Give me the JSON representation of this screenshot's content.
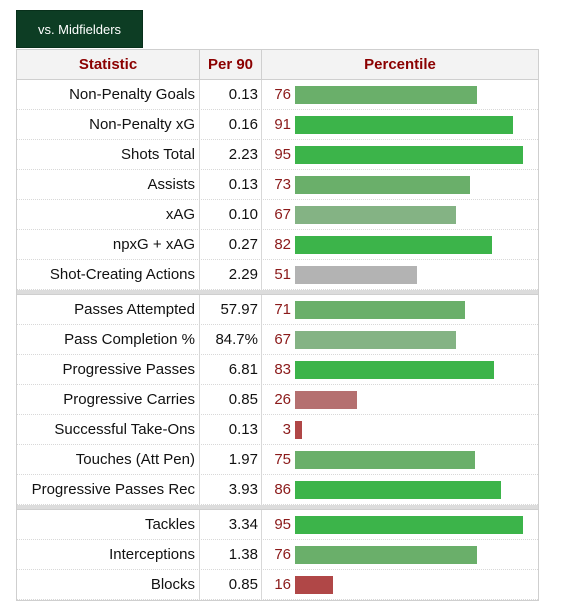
{
  "tab": {
    "label": "vs. Midfielders"
  },
  "header": {
    "statistic": "Statistic",
    "per90": "Per 90",
    "percentile": "Percentile"
  },
  "colors": {
    "high": "#3cb44a",
    "mid_high": "#6aaf6a",
    "mid": "#84b384",
    "neutral": "#b3b3b3",
    "low": "#b57070",
    "very_low": "#b04747"
  },
  "groups": [
    {
      "rows": [
        {
          "stat": "Non-Penalty Goals",
          "per90": "0.13",
          "pct": 76
        },
        {
          "stat": "Non-Penalty xG",
          "per90": "0.16",
          "pct": 91
        },
        {
          "stat": "Shots Total",
          "per90": "2.23",
          "pct": 95
        },
        {
          "stat": "Assists",
          "per90": "0.13",
          "pct": 73
        },
        {
          "stat": "xAG",
          "per90": "0.10",
          "pct": 67
        },
        {
          "stat": "npxG + xAG",
          "per90": "0.27",
          "pct": 82
        },
        {
          "stat": "Shot-Creating Actions",
          "per90": "2.29",
          "pct": 51
        }
      ]
    },
    {
      "rows": [
        {
          "stat": "Passes Attempted",
          "per90": "57.97",
          "pct": 71
        },
        {
          "stat": "Pass Completion %",
          "per90": "84.7%",
          "pct": 67
        },
        {
          "stat": "Progressive Passes",
          "per90": "6.81",
          "pct": 83
        },
        {
          "stat": "Progressive Carries",
          "per90": "0.85",
          "pct": 26
        },
        {
          "stat": "Successful Take-Ons",
          "per90": "0.13",
          "pct": 3
        },
        {
          "stat": "Touches (Att Pen)",
          "per90": "1.97",
          "pct": 75
        },
        {
          "stat": "Progressive Passes Rec",
          "per90": "3.93",
          "pct": 86
        }
      ]
    },
    {
      "rows": [
        {
          "stat": "Tackles",
          "per90": "3.34",
          "pct": 95
        },
        {
          "stat": "Interceptions",
          "per90": "1.38",
          "pct": 76
        },
        {
          "stat": "Blocks",
          "per90": "0.85",
          "pct": 16
        }
      ]
    }
  ]
}
